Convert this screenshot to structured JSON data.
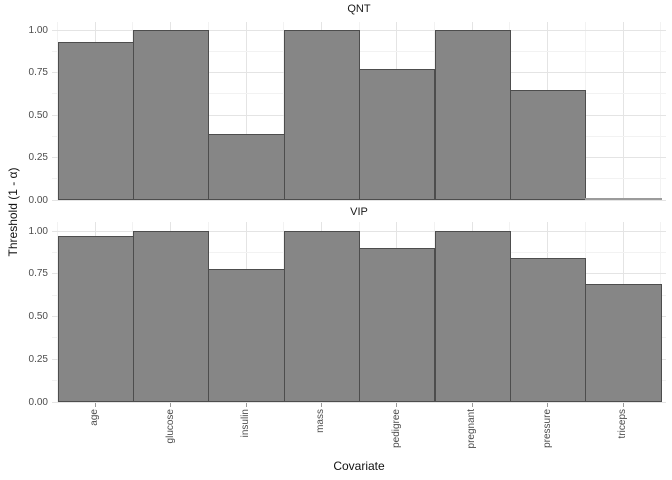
{
  "figure": {
    "y_axis_title": "Threshold (1 - α)",
    "x_axis_title": "Covariate",
    "y_tick_labels": [
      "0.00",
      "0.25",
      "0.50",
      "0.75",
      "1.00"
    ]
  },
  "chart_data": {
    "type": "bar",
    "title": "",
    "xlabel": "Covariate",
    "ylabel": "Threshold (1 - α)",
    "categories": [
      "age",
      "glucose",
      "insulin",
      "mass",
      "pedigree",
      "pregnant",
      "pressure",
      "triceps"
    ],
    "facets": [
      {
        "label": "QNT",
        "values": [
          0.93,
          1.0,
          0.39,
          1.0,
          0.77,
          1.0,
          0.65,
          0.0
        ]
      },
      {
        "label": "VIP",
        "values": [
          0.97,
          1.0,
          0.78,
          1.0,
          0.9,
          1.0,
          0.84,
          0.69
        ]
      }
    ],
    "ylim": [
      0,
      1
    ],
    "y_major_ticks": [
      0,
      0.25,
      0.5,
      0.75,
      1
    ],
    "y_minor_step": 0.125,
    "grid": "on",
    "legend_position": "none",
    "colors": {
      "bar_fill": "#868686",
      "bar_border": "#4d4d4d",
      "zero_bar_line": "#9b9b9b",
      "grid_major": "#e4e4e4",
      "grid_minor": "#f2f2f2",
      "axis_tick": "#999999",
      "tick_text": "#4d4d4d",
      "title_text": "#111111"
    }
  }
}
